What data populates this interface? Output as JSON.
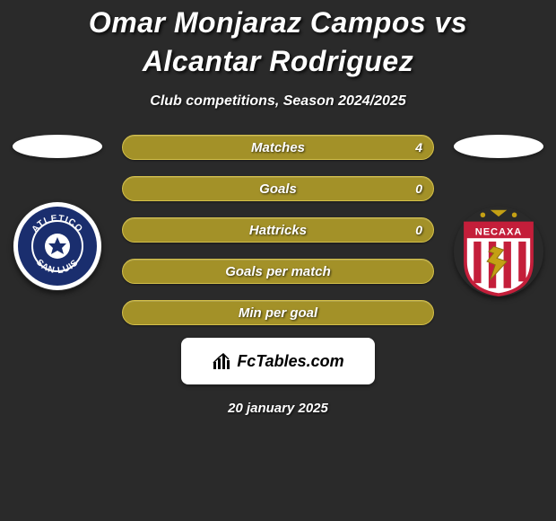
{
  "header": {
    "title": "Omar Monjaraz Campos vs Alcantar Rodriguez",
    "subtitle": "Club competitions, Season 2024/2025"
  },
  "players": {
    "left": {
      "flag_color": "#ffffff",
      "club_name": "ATLETICO SAN LUIS",
      "club_bg": "#1a2e6e",
      "club_ring": "#ffffff",
      "club_text_color": "#ffffff"
    },
    "right": {
      "flag_color": "#ffffff",
      "club_name": "NECAXA",
      "club_bg": "#ffffff",
      "club_ring": "#c41e3a",
      "club_text_color": "#c41e3a"
    }
  },
  "stats": {
    "bar_bg": "#a39128",
    "bar_border": "#d4c04a",
    "label_color": "#ffffff",
    "label_fontsize": 15,
    "value_fontsize": 14,
    "rows": [
      {
        "label": "Matches",
        "left": "",
        "right": "4"
      },
      {
        "label": "Goals",
        "left": "",
        "right": "0"
      },
      {
        "label": "Hattricks",
        "left": "",
        "right": "0"
      },
      {
        "label": "Goals per match",
        "left": "",
        "right": ""
      },
      {
        "label": "Min per goal",
        "left": "",
        "right": ""
      }
    ]
  },
  "branding": {
    "site": "FcTables.com",
    "box_bg": "#ffffff",
    "text_color": "#000000",
    "icon_color": "#000000"
  },
  "footer": {
    "date": "20 january 2025"
  },
  "colors": {
    "page_bg": "#2a2a2a",
    "text_main": "#ffffff"
  }
}
